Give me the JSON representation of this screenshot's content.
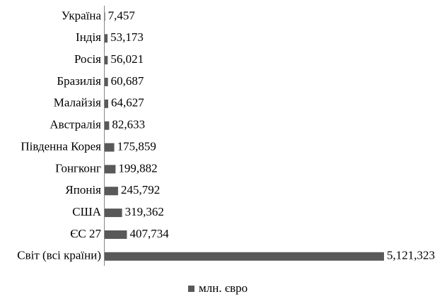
{
  "chart_data": {
    "type": "bar",
    "orientation": "horizontal",
    "categories": [
      "Україна",
      "Індія",
      "Росія",
      "Бразилія",
      "Малайзія",
      "Австралія",
      "Південна Корея",
      "Гонгконг",
      "Японія",
      "США",
      "ЄС 27",
      "Світ (всі країни)"
    ],
    "series": [
      {
        "name": "млн. євро",
        "color": "#595959",
        "values": [
          7457,
          53173,
          56021,
          60687,
          64627,
          82633,
          175859,
          199882,
          245792,
          319362,
          407734,
          5121323
        ],
        "value_labels": [
          "7,457",
          "53,173",
          "56,021",
          "60,687",
          "64,627",
          "82,633",
          "175,859",
          "199,882",
          "245,792",
          "319,362",
          "407,734",
          "5,121,323"
        ]
      }
    ],
    "legend": "bottom"
  }
}
